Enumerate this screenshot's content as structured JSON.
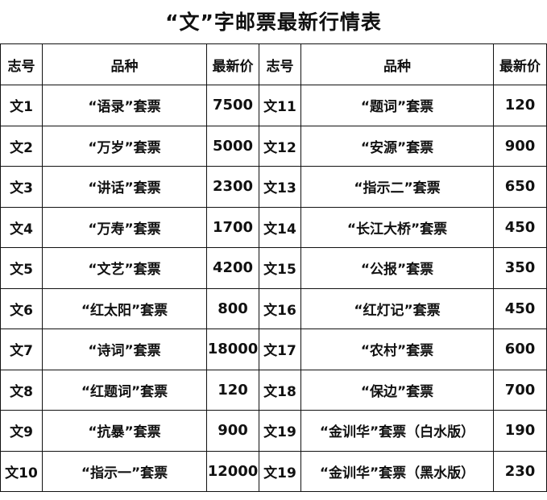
{
  "title": "“文”字邮票最新行情表",
  "headers": [
    "志号",
    "品种",
    "最新价",
    "志号",
    "品种",
    "最新价"
  ],
  "rows": [
    [
      {
        "code": "文1",
        "name": "“语录”套票",
        "price": "7500"
      },
      {
        "code": "文11",
        "name": "“题词”套票",
        "price": "120"
      }
    ],
    [
      {
        "code": "文2",
        "name": "“万岁”套票",
        "price": "5000"
      },
      {
        "code": "文12",
        "name": "“安源”套票",
        "price": "900"
      }
    ],
    [
      {
        "code": "文3",
        "name": "“讲话”套票",
        "price": "2300"
      },
      {
        "code": "文13",
        "name": "“指示二”套票",
        "price": "650"
      }
    ],
    [
      {
        "code": "文4",
        "name": "“万寿”套票",
        "price": "1700"
      },
      {
        "code": "文14",
        "name": "“长江大桥”套票",
        "price": "450"
      }
    ],
    [
      {
        "code": "文5",
        "name": "“文艺”套票",
        "price": "4200"
      },
      {
        "code": "文15",
        "name": "“公报”套票",
        "price": "350"
      }
    ],
    [
      {
        "code": "文6",
        "name": "“红太阳”套票",
        "price": "800"
      },
      {
        "code": "文16",
        "name": "“红灯记”套票",
        "price": "450"
      }
    ],
    [
      {
        "code": "文7",
        "name": "“诗词”套票",
        "price": "18000"
      },
      {
        "code": "文17",
        "name": "“农村”套票",
        "price": "600"
      }
    ],
    [
      {
        "code": "文8",
        "name": "“红题词”套票",
        "price": "120"
      },
      {
        "code": "文18",
        "name": "“保边”套票",
        "price": "700"
      }
    ],
    [
      {
        "code": "文9",
        "name": "“抗暴”套票",
        "price": "900"
      },
      {
        "code": "文19",
        "name": "“金训华”套票（白水版）",
        "price": "190"
      }
    ],
    [
      {
        "code": "文10",
        "name": "“指示一”套票",
        "price": "12000"
      },
      {
        "code": "文19",
        "name": "“金训华”套票（黑水版）",
        "price": "230"
      }
    ]
  ]
}
